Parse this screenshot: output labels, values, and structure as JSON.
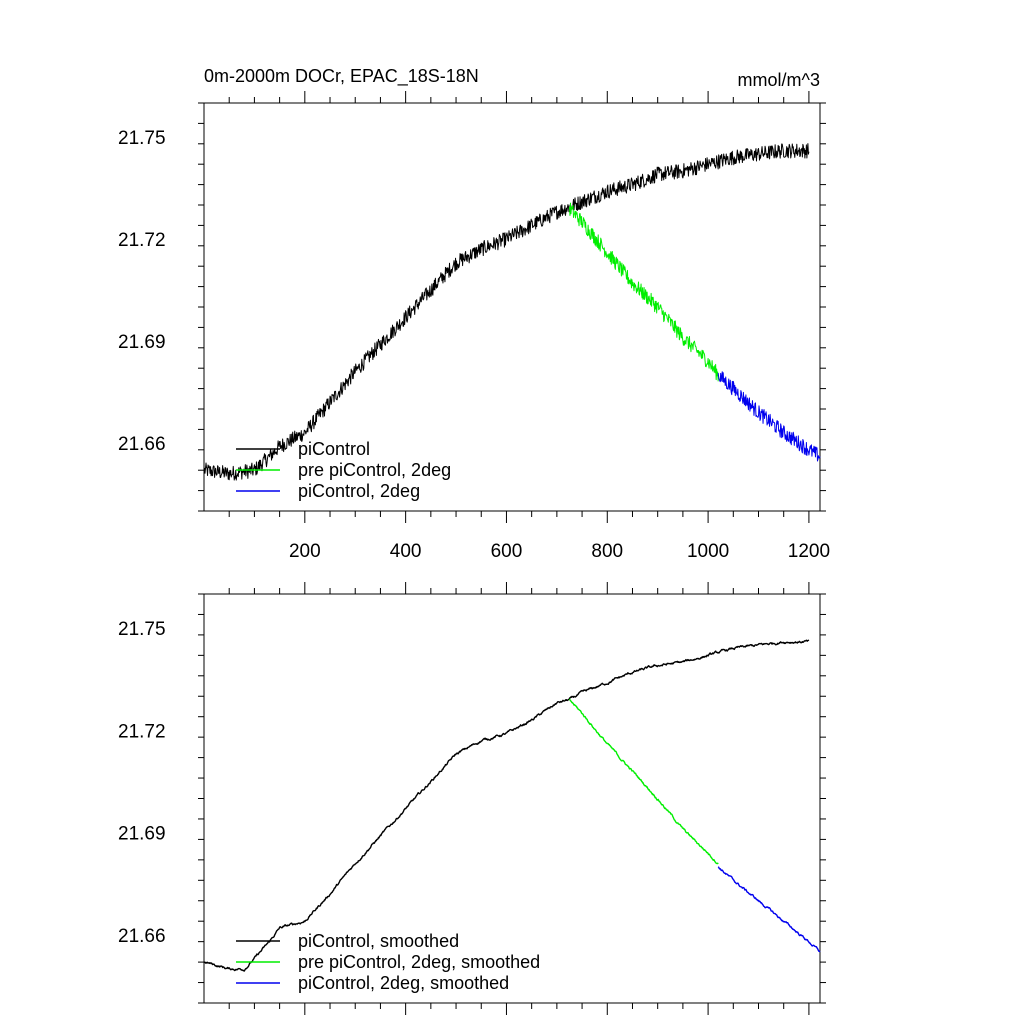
{
  "figure": {
    "title": "0m-2000m DOCr, EPAC_18S-18N",
    "units": "mmol/m^3"
  },
  "colors": {
    "piControl": "#000000",
    "pre_piControl_2deg": "#00ee00",
    "piControl_2deg": "#0000ee"
  },
  "chart_data": [
    {
      "type": "line",
      "panel": "top",
      "title": "0m-2000m DOCr, EPAC_18S-18N",
      "units_label": "mmol/m^3",
      "xlim": [
        0,
        1222
      ],
      "ylim": [
        21.64,
        21.76
      ],
      "x_ticks": [
        200,
        400,
        600,
        800,
        1000,
        1200
      ],
      "x_tick_labels": [
        "200",
        "400",
        "600",
        "800",
        "1000",
        "1200"
      ],
      "y_ticks": [
        21.66,
        21.69,
        21.72,
        21.75
      ],
      "y_tick_labels": [
        "21.66",
        "21.69",
        "21.72",
        "21.75"
      ],
      "legend_position": "bottom-left",
      "noise": "high",
      "series": [
        {
          "name": "piControl",
          "color_key": "piControl",
          "x": [
            1,
            50,
            100,
            130,
            150,
            200,
            250,
            300,
            350,
            400,
            450,
            500,
            550,
            600,
            650,
            700,
            725,
            750,
            800,
            850,
            900,
            950,
            1000,
            1050,
            1100,
            1150,
            1200
          ],
          "y": [
            21.652,
            21.651,
            21.652,
            21.656,
            21.659,
            21.663,
            21.672,
            21.681,
            21.689,
            21.697,
            21.705,
            21.713,
            21.717,
            21.72,
            21.724,
            21.728,
            21.7295,
            21.731,
            21.734,
            21.736,
            21.739,
            21.74,
            21.742,
            21.744,
            21.745,
            21.746,
            21.746
          ]
        },
        {
          "name": "pre piControl, 2deg",
          "color_key": "pre_piControl_2deg",
          "x": [
            725,
            750,
            800,
            850,
            900,
            950,
            1000,
            1020
          ],
          "y": [
            21.729,
            21.725,
            21.716,
            21.707,
            21.7,
            21.691,
            21.684,
            21.68
          ]
        },
        {
          "name": "piControl, 2deg",
          "color_key": "piControl_2deg",
          "x": [
            1020,
            1050,
            1100,
            1150,
            1200,
            1222
          ],
          "y": [
            21.68,
            21.676,
            21.669,
            21.663,
            21.658,
            21.656
          ]
        }
      ]
    },
    {
      "type": "line",
      "panel": "bottom",
      "xlim": [
        0,
        1222
      ],
      "ylim": [
        21.64,
        21.76
      ],
      "x_ticks": [
        200,
        400,
        600,
        800,
        1000,
        1200
      ],
      "y_ticks": [
        21.66,
        21.69,
        21.72,
        21.75
      ],
      "y_tick_labels": [
        "21.66",
        "21.69",
        "21.72",
        "21.75"
      ],
      "legend_position": "bottom-left",
      "noise": "low",
      "series": [
        {
          "name": "piControl, smoothed",
          "color_key": "piControl",
          "x": [
            1,
            50,
            80,
            100,
            130,
            150,
            200,
            250,
            300,
            350,
            400,
            450,
            500,
            550,
            600,
            650,
            700,
            725,
            750,
            800,
            850,
            900,
            950,
            1000,
            1050,
            1100,
            1150,
            1200
          ],
          "y": [
            21.652,
            21.65,
            21.65,
            21.653,
            21.658,
            21.662,
            21.664,
            21.672,
            21.681,
            21.689,
            21.697,
            21.705,
            21.713,
            21.717,
            21.719,
            21.723,
            21.728,
            21.729,
            21.731,
            21.734,
            21.737,
            21.739,
            21.74,
            21.742,
            21.744,
            21.745,
            21.746,
            21.746
          ]
        },
        {
          "name": "pre piControl, 2deg, smoothed",
          "color_key": "pre_piControl_2deg",
          "x": [
            725,
            750,
            800,
            850,
            900,
            950,
            1000,
            1020
          ],
          "y": [
            21.729,
            21.725,
            21.716,
            21.708,
            21.7,
            21.691,
            21.684,
            21.681
          ]
        },
        {
          "name": "piControl, 2deg, smoothed",
          "color_key": "piControl_2deg",
          "x": [
            1020,
            1050,
            1100,
            1150,
            1200,
            1222
          ],
          "y": [
            21.68,
            21.676,
            21.67,
            21.664,
            21.658,
            21.655
          ]
        }
      ]
    }
  ]
}
